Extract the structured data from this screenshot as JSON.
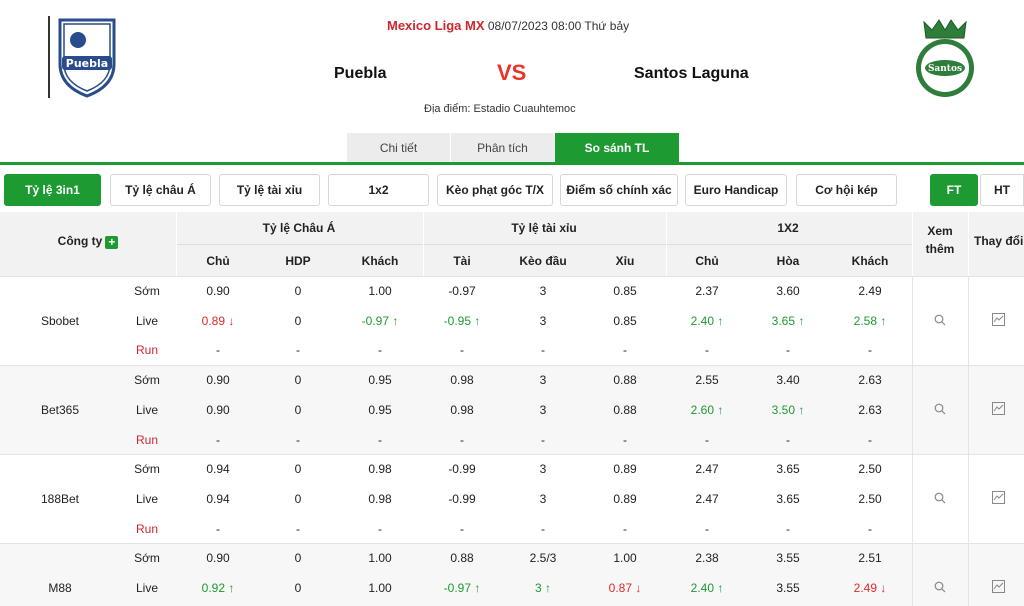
{
  "match": {
    "league": "Mexico Liga MX",
    "datetime": "08/07/2023 08:00 Thứ bảy",
    "home": "Puebla",
    "vs": "VS",
    "away": "Santos Laguna",
    "venue": "Địa điểm: Estadio Cuauhtemoc"
  },
  "tabs": [
    {
      "label": "Chi tiết"
    },
    {
      "label": "Phân tích"
    },
    {
      "label": "So sánh TL"
    }
  ],
  "filters": {
    "items": [
      "Tỷ lệ 3in1",
      "Tỷ lệ châu Á",
      "Tỷ lệ tài xỉu",
      "1x2",
      "Kèo phạt góc T/X",
      "Điểm số chính xác",
      "Euro Handicap",
      "Cơ hội kép"
    ],
    "ft": "FT",
    "ht": "HT"
  },
  "table": {
    "company_header": "Công ty",
    "add_symbol": "+",
    "groups": {
      "asian": "Tỷ lệ Châu Á",
      "ou": "Tỷ lệ tài xỉu",
      "x12": "1X2",
      "more": "Xem thêm",
      "change": "Thay đổi"
    },
    "subheaders": [
      "Chủ",
      "HDP",
      "Khách",
      "Tài",
      "Kèo đầu",
      "Xỉu",
      "Chủ",
      "Hòa",
      "Khách"
    ],
    "companies": [
      {
        "name": "Sbobet",
        "rows": [
          {
            "type": "Sớm",
            "values": [
              [
                "0.90",
                ""
              ],
              [
                "0",
                ""
              ],
              [
                "1.00",
                ""
              ],
              [
                "-0.97",
                ""
              ],
              [
                "3",
                ""
              ],
              [
                "0.85",
                ""
              ],
              [
                "2.37",
                ""
              ],
              [
                "3.60",
                ""
              ],
              [
                "2.49",
                ""
              ]
            ]
          },
          {
            "type": "Live",
            "values": [
              [
                "0.89 ↓",
                "down"
              ],
              [
                "0",
                ""
              ],
              [
                "-0.97 ↑",
                "up"
              ],
              [
                "-0.95 ↑",
                "up"
              ],
              [
                "3",
                ""
              ],
              [
                "0.85",
                ""
              ],
              [
                "2.40 ↑",
                "up"
              ],
              [
                "3.65 ↑",
                "up"
              ],
              [
                "2.58 ↑",
                "up"
              ]
            ]
          },
          {
            "type": "Run",
            "values": [
              [
                "-",
                ""
              ],
              [
                "-",
                ""
              ],
              [
                "-",
                ""
              ],
              [
                "-",
                ""
              ],
              [
                "-",
                ""
              ],
              [
                "-",
                ""
              ],
              [
                "-",
                ""
              ],
              [
                "-",
                ""
              ],
              [
                "-",
                ""
              ]
            ]
          }
        ]
      },
      {
        "name": "Bet365",
        "rows": [
          {
            "type": "Sớm",
            "values": [
              [
                "0.90",
                ""
              ],
              [
                "0",
                ""
              ],
              [
                "0.95",
                ""
              ],
              [
                "0.98",
                ""
              ],
              [
                "3",
                ""
              ],
              [
                "0.88",
                ""
              ],
              [
                "2.55",
                ""
              ],
              [
                "3.40",
                ""
              ],
              [
                "2.63",
                ""
              ]
            ]
          },
          {
            "type": "Live",
            "values": [
              [
                "0.90",
                ""
              ],
              [
                "0",
                ""
              ],
              [
                "0.95",
                ""
              ],
              [
                "0.98",
                ""
              ],
              [
                "3",
                ""
              ],
              [
                "0.88",
                ""
              ],
              [
                "2.60 ↑",
                "up"
              ],
              [
                "3.50 ↑",
                "up"
              ],
              [
                "2.63",
                ""
              ]
            ]
          },
          {
            "type": "Run",
            "values": [
              [
                "-",
                ""
              ],
              [
                "-",
                ""
              ],
              [
                "-",
                ""
              ],
              [
                "-",
                ""
              ],
              [
                "-",
                ""
              ],
              [
                "-",
                ""
              ],
              [
                "-",
                ""
              ],
              [
                "-",
                ""
              ],
              [
                "-",
                ""
              ]
            ]
          }
        ]
      },
      {
        "name": "188Bet",
        "rows": [
          {
            "type": "Sớm",
            "values": [
              [
                "0.94",
                ""
              ],
              [
                "0",
                ""
              ],
              [
                "0.98",
                ""
              ],
              [
                "-0.99",
                ""
              ],
              [
                "3",
                ""
              ],
              [
                "0.89",
                ""
              ],
              [
                "2.47",
                ""
              ],
              [
                "3.65",
                ""
              ],
              [
                "2.50",
                ""
              ]
            ]
          },
          {
            "type": "Live",
            "values": [
              [
                "0.94",
                ""
              ],
              [
                "0",
                ""
              ],
              [
                "0.98",
                ""
              ],
              [
                "-0.99",
                ""
              ],
              [
                "3",
                ""
              ],
              [
                "0.89",
                ""
              ],
              [
                "2.47",
                ""
              ],
              [
                "3.65",
                ""
              ],
              [
                "2.50",
                ""
              ]
            ]
          },
          {
            "type": "Run",
            "values": [
              [
                "-",
                ""
              ],
              [
                "-",
                ""
              ],
              [
                "-",
                ""
              ],
              [
                "-",
                ""
              ],
              [
                "-",
                ""
              ],
              [
                "-",
                ""
              ],
              [
                "-",
                ""
              ],
              [
                "-",
                ""
              ],
              [
                "-",
                ""
              ]
            ]
          }
        ]
      },
      {
        "name": "M88",
        "rows": [
          {
            "type": "Sớm",
            "values": [
              [
                "0.90",
                ""
              ],
              [
                "0",
                ""
              ],
              [
                "1.00",
                ""
              ],
              [
                "0.88",
                ""
              ],
              [
                "2.5/3",
                ""
              ],
              [
                "1.00",
                ""
              ],
              [
                "2.38",
                ""
              ],
              [
                "3.55",
                ""
              ],
              [
                "2.51",
                ""
              ]
            ]
          },
          {
            "type": "Live",
            "values": [
              [
                "0.92 ↑",
                "up"
              ],
              [
                "0",
                ""
              ],
              [
                "1.00",
                ""
              ],
              [
                "-0.97 ↑",
                "up"
              ],
              [
                "3   ↑",
                "up"
              ],
              [
                "0.87 ↓",
                "down"
              ],
              [
                "2.40 ↑",
                "up"
              ],
              [
                "3.55",
                ""
              ],
              [
                "2.49 ↓",
                "down"
              ]
            ]
          }
        ]
      }
    ]
  },
  "colors": {
    "accent": "#1e9a32",
    "up": "#1e9a32",
    "down": "#e02a2a",
    "league": "#d0262f"
  },
  "icons": {
    "more": "search-icon",
    "change": "line-chart-icon"
  }
}
